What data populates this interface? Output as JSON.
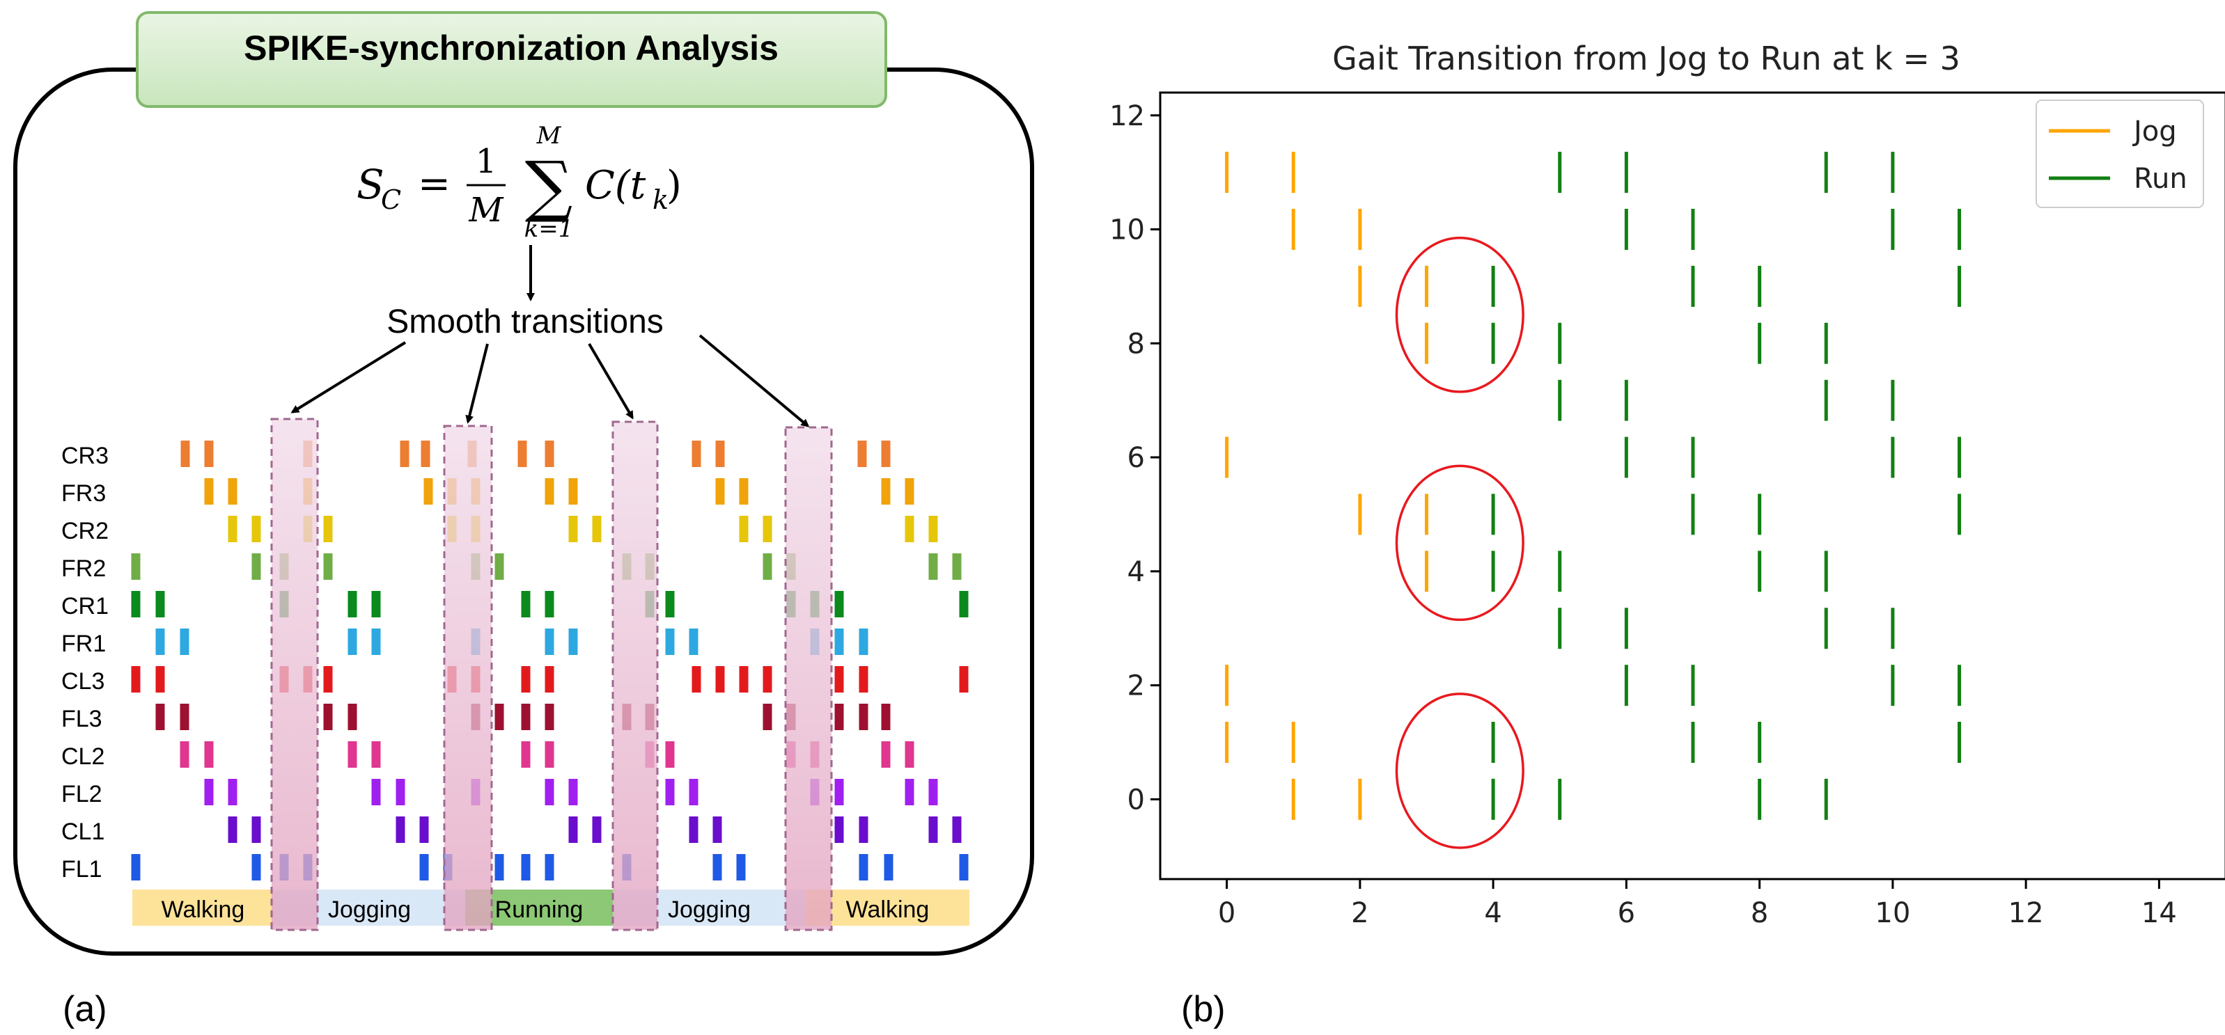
{
  "panel_a": {
    "header_title": "SPIKE-synchronization Analysis",
    "formula": {
      "lhs": "S",
      "lhs_sub": "C",
      "eq": "=",
      "frac_num": "1",
      "frac_den": "M",
      "sum_top": "M",
      "sum_bottom": "k=1",
      "sum_symbol": "∑",
      "term": "C(t",
      "term_sub": "k",
      "term_close": ")"
    },
    "smooth_label": "Smooth transitions",
    "rows": [
      "CR3",
      "FR3",
      "CR2",
      "FR2",
      "CR1",
      "FR1",
      "CL3",
      "FL3",
      "CL2",
      "FL2",
      "CL1",
      "FL1"
    ],
    "row_colors": [
      "#ed7d31",
      "#f0a30a",
      "#e6c60a",
      "#70ad47",
      "#0b8a1e",
      "#2ea8e0",
      "#e31a1c",
      "#9e1030",
      "#e0368f",
      "#a020f0",
      "#6a0dcc",
      "#1f5ae6"
    ],
    "phases": [
      {
        "label": "Walking",
        "color": "#fde29a"
      },
      {
        "label": "Jogging",
        "color": "#d9e8f6"
      },
      {
        "label": "Running",
        "color": "#8cc875"
      },
      {
        "label": "Jogging",
        "color": "#d9e8f6"
      },
      {
        "label": "Walking",
        "color": "#fde29a"
      }
    ],
    "panel_label": "(a)"
  },
  "chart_data": {
    "type": "scatter",
    "marker": "vertical-line",
    "title": "Gait Transition from Jog to Run at k = 3",
    "xlabel": "",
    "ylabel": "",
    "xlim": [
      -1,
      15
    ],
    "ylim": [
      -1.4,
      12.4
    ],
    "xticks": [
      0,
      2,
      4,
      6,
      8,
      10,
      12,
      14
    ],
    "yticks": [
      0,
      2,
      4,
      6,
      8,
      10,
      12
    ],
    "legend_position": "top-right",
    "series": [
      {
        "name": "Jog",
        "color": "#ffa500",
        "points": [
          [
            0,
            11
          ],
          [
            1,
            11
          ],
          [
            1,
            10
          ],
          [
            2,
            10
          ],
          [
            2,
            9
          ],
          [
            3,
            9
          ],
          [
            3,
            8
          ],
          [
            0,
            6
          ],
          [
            2,
            5
          ],
          [
            3,
            5
          ],
          [
            3,
            4
          ],
          [
            0,
            2
          ],
          [
            0,
            1
          ],
          [
            1,
            1
          ],
          [
            1,
            0
          ],
          [
            2,
            0
          ]
        ]
      },
      {
        "name": "Run",
        "color": "#128012",
        "points": [
          [
            5,
            11
          ],
          [
            6,
            11
          ],
          [
            9,
            11
          ],
          [
            10,
            11
          ],
          [
            6,
            10
          ],
          [
            7,
            10
          ],
          [
            10,
            10
          ],
          [
            11,
            10
          ],
          [
            4,
            9
          ],
          [
            7,
            9
          ],
          [
            8,
            9
          ],
          [
            11,
            9
          ],
          [
            4,
            8
          ],
          [
            5,
            8
          ],
          [
            8,
            8
          ],
          [
            9,
            8
          ],
          [
            5,
            7
          ],
          [
            6,
            7
          ],
          [
            9,
            7
          ],
          [
            10,
            7
          ],
          [
            6,
            6
          ],
          [
            7,
            6
          ],
          [
            10,
            6
          ],
          [
            11,
            6
          ],
          [
            4,
            5
          ],
          [
            7,
            5
          ],
          [
            8,
            5
          ],
          [
            11,
            5
          ],
          [
            4,
            4
          ],
          [
            5,
            4
          ],
          [
            8,
            4
          ],
          [
            9,
            4
          ],
          [
            5,
            3
          ],
          [
            6,
            3
          ],
          [
            9,
            3
          ],
          [
            10,
            3
          ],
          [
            6,
            2
          ],
          [
            7,
            2
          ],
          [
            10,
            2
          ],
          [
            11,
            2
          ],
          [
            4,
            1
          ],
          [
            7,
            1
          ],
          [
            8,
            1
          ],
          [
            11,
            1
          ],
          [
            4,
            0
          ],
          [
            5,
            0
          ],
          [
            8,
            0
          ],
          [
            9,
            0
          ]
        ]
      }
    ],
    "annotations": [
      {
        "shape": "ellipse",
        "center": [
          3.5,
          8.5
        ],
        "color": "#e8191f"
      },
      {
        "shape": "ellipse",
        "center": [
          3.5,
          4.5
        ],
        "color": "#e8191f"
      },
      {
        "shape": "ellipse",
        "center": [
          3.5,
          0.5
        ],
        "color": "#e8191f"
      }
    ],
    "panel_label": "(b)"
  }
}
